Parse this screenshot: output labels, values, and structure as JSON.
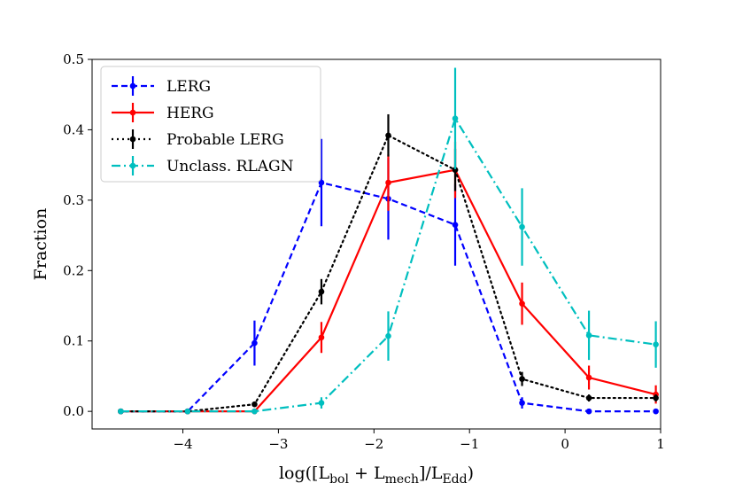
{
  "chart_data": {
    "type": "line",
    "title": "",
    "xlabel": "log([L_bol + L_mech]/L_Edd)",
    "xlabel_parts": {
      "open": "log([L",
      "sub1": "bol",
      "mid": " + L",
      "sub2": "mech",
      "close": "]/L",
      "sub3": "Edd",
      "end": ")"
    },
    "ylabel": "Fraction",
    "xlim": [
      -4.95,
      1.0
    ],
    "ylim": [
      -0.025,
      0.5
    ],
    "xticks": [
      -4,
      -3,
      -2,
      -1,
      0,
      1
    ],
    "xtick_labels": [
      "−4",
      "−3",
      "−2",
      "−1",
      "0",
      "1"
    ],
    "yticks": [
      0.0,
      0.1,
      0.2,
      0.3,
      0.4,
      0.5
    ],
    "ytick_labels": [
      "0.0",
      "0.1",
      "0.2",
      "0.3",
      "0.4",
      "0.5"
    ],
    "grid": false,
    "legend_position": "top-left",
    "series": [
      {
        "name": "LERG",
        "color": "#0000ff",
        "linestyle": "dashed",
        "x": [
          -4.65,
          -3.95,
          -3.25,
          -2.55,
          -1.85,
          -1.15,
          -0.45,
          0.25,
          0.95
        ],
        "y": [
          0.0,
          0.0,
          0.097,
          0.325,
          0.302,
          0.265,
          0.012,
          0.0,
          0.0
        ],
        "err": [
          0.0,
          0.0,
          0.032,
          0.062,
          0.058,
          0.058,
          0.008,
          0.0,
          0.0
        ]
      },
      {
        "name": "HERG",
        "color": "#ff0000",
        "linestyle": "solid",
        "x": [
          -4.65,
          -3.95,
          -3.25,
          -2.55,
          -1.85,
          -1.15,
          -0.45,
          0.25,
          0.95
        ],
        "y": [
          0.0,
          0.0,
          0.0,
          0.105,
          0.325,
          0.343,
          0.153,
          0.048,
          0.024
        ],
        "err": [
          0.0,
          0.0,
          0.0,
          0.022,
          0.04,
          0.04,
          0.03,
          0.017,
          0.013
        ]
      },
      {
        "name": "Probable LERG",
        "color": "#000000",
        "linestyle": "dotted",
        "x": [
          -4.65,
          -3.95,
          -3.25,
          -2.55,
          -1.85,
          -1.15,
          -0.45,
          0.25,
          0.95
        ],
        "y": [
          0.0,
          0.0,
          0.01,
          0.17,
          0.392,
          0.343,
          0.046,
          0.019,
          0.019
        ],
        "err": [
          0.0,
          0.0,
          0.003,
          0.018,
          0.03,
          0.03,
          0.01,
          0.005,
          0.005
        ]
      },
      {
        "name": "Unclass. RLAGN",
        "color": "#00bfbf",
        "linestyle": "dashdot",
        "x": [
          -4.65,
          -3.95,
          -3.25,
          -2.55,
          -1.85,
          -1.15,
          -0.45,
          0.25,
          0.95
        ],
        "y": [
          0.0,
          0.0,
          0.0,
          0.012,
          0.107,
          0.416,
          0.262,
          0.108,
          0.095
        ],
        "err": [
          0.0,
          0.0,
          0.0,
          0.008,
          0.035,
          0.072,
          0.055,
          0.035,
          0.033
        ]
      }
    ]
  }
}
